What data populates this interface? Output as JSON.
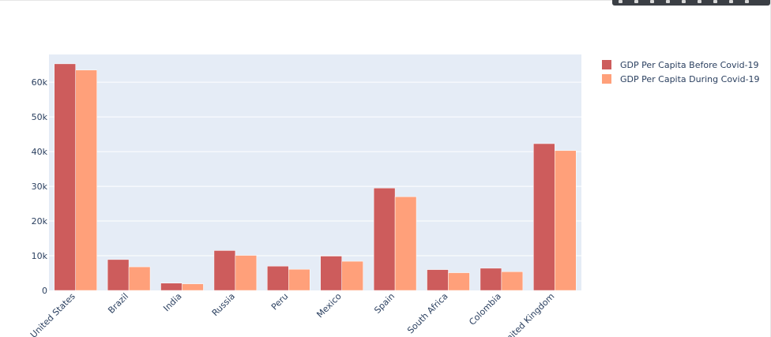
{
  "chart_data": {
    "type": "bar",
    "title": "",
    "xlabel": "",
    "ylabel": "",
    "ylim": [
      0,
      68000
    ],
    "yticks": [
      0,
      10000,
      20000,
      30000,
      40000,
      50000,
      60000
    ],
    "ytick_labels": [
      "0",
      "10k",
      "20k",
      "30k",
      "40k",
      "50k",
      "60k"
    ],
    "grid": true,
    "legend_position": "top-right",
    "plot_bg": "#e5ecf6",
    "categories": [
      "United States",
      "Brazil",
      "India",
      "Russia",
      "Peru",
      "Mexico",
      "Spain",
      "South Africa",
      "Colombia",
      "United Kingdom"
    ],
    "category_labels": [
      "United States",
      "Brazil",
      "India",
      "Russia",
      "Peru",
      "Mexico",
      "Spain",
      "South Africa",
      "Colombia",
      "nited Kingdom"
    ],
    "series": [
      {
        "name": "GDP Per Capita Before Covid-19",
        "color": "#cd5c5c",
        "values": [
          65300,
          8900,
          2100,
          11500,
          7000,
          9900,
          29500,
          6000,
          6400,
          42300
        ]
      },
      {
        "name": "GDP Per Capita During Covid-19",
        "color": "#ffa07a",
        "values": [
          63500,
          6800,
          1900,
          10100,
          6100,
          8400,
          27000,
          5100,
          5400,
          40300
        ]
      }
    ]
  },
  "modebar": {
    "icons": [
      "camera-icon",
      "zoom-icon",
      "pan-icon",
      "box-select-icon",
      "zoom-in-icon",
      "zoom-out-icon",
      "autoscale-icon",
      "reset-axes-icon",
      "plotly-logo-icon"
    ]
  }
}
